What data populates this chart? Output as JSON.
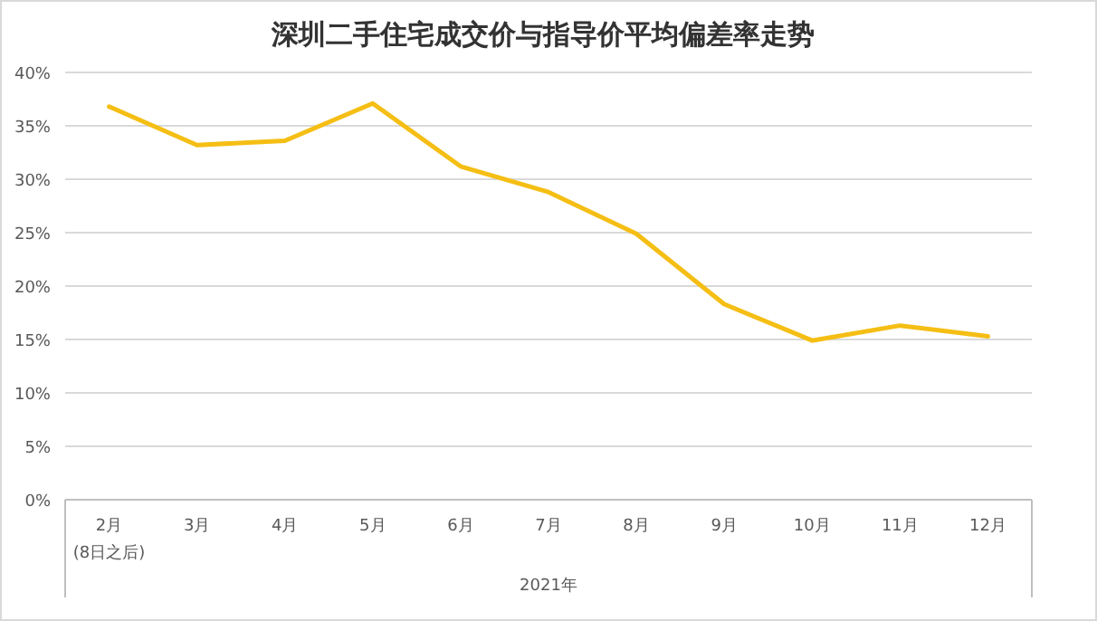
{
  "chart_data": {
    "type": "line",
    "title": "深圳二手住宅成交价与指导价平均偏差率走势",
    "xlabel": "2021年",
    "categories": [
      "2月\n(8日之后)",
      "3月",
      "4月",
      "5月",
      "6月",
      "7月",
      "8月",
      "9月",
      "10月",
      "11月",
      "12月"
    ],
    "series": [
      {
        "color": "#f5be14",
        "values": [
          36.8,
          33.2,
          33.6,
          37.1,
          31.2,
          28.8,
          24.9,
          18.3,
          14.9,
          16.3,
          15.3
        ]
      }
    ],
    "ylim": [
      0,
      40
    ],
    "yticks": [
      {
        "value": 0,
        "label": "0%"
      },
      {
        "value": 5,
        "label": "5%"
      },
      {
        "value": 10,
        "label": "10%"
      },
      {
        "value": 15,
        "label": "15%"
      },
      {
        "value": 20,
        "label": "20%"
      },
      {
        "value": 25,
        "label": "25%"
      },
      {
        "value": 30,
        "label": "30%"
      },
      {
        "value": 35,
        "label": "35%"
      },
      {
        "value": 40,
        "label": "40%"
      }
    ],
    "grid": "y",
    "marker": "none",
    "line_style": "solid"
  }
}
